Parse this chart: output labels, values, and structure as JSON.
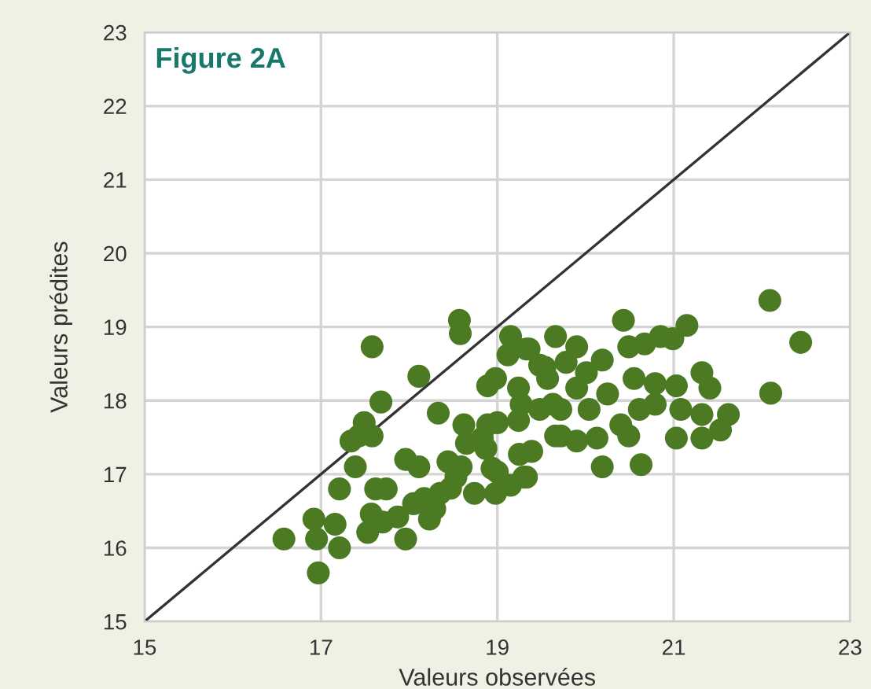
{
  "chart_data": {
    "type": "scatter",
    "title": "Figure 2A",
    "xlabel": "Valeurs observées",
    "ylabel": "Valeurs prédites",
    "xlim": [
      15,
      23
    ],
    "ylim": [
      15,
      23
    ],
    "xticks": [
      15,
      17,
      19,
      21,
      23
    ],
    "yticks": [
      15,
      16,
      17,
      18,
      19,
      20,
      21,
      22,
      23
    ],
    "grid": true,
    "marker": "circle",
    "series": [
      {
        "type": "line",
        "marker": "none",
        "color": "#333333",
        "x": [
          15,
          23
        ],
        "values": [
          15,
          23
        ]
      },
      {
        "color": "#4b7a22",
        "x": [
          16.58,
          16.92,
          16.95,
          16.97,
          17.16,
          17.21,
          17.21,
          17.39,
          17.34,
          17.49,
          17.58,
          17.43,
          17.68,
          17.58,
          18.11,
          18.57,
          18.58,
          18.33,
          17.62,
          17.74,
          17.57,
          17.53,
          17.7,
          17.96,
          17.96,
          18.11,
          17.87,
          18.05,
          18.17,
          18.23,
          18.35,
          18.47,
          18.44,
          18.59,
          18.62,
          18.65,
          18.83,
          18.87,
          18.74,
          18.94,
          18.98,
          19.15,
          19.33,
          19.25,
          19.39,
          19.0,
          19.24,
          19.27,
          18.89,
          18.98,
          19.24,
          19.12,
          19.15,
          19.33,
          19.66,
          19.54,
          19.63,
          19.72,
          18.29,
          18.53,
          22.09,
          22.44,
          22.1,
          20.43,
          21.15,
          19.9,
          20.19,
          20.49,
          20.67,
          20.85,
          20.99,
          19.36,
          19.48,
          19.78,
          20.01,
          20.25,
          19.57,
          19.9,
          20.55,
          20.79,
          21.03,
          21.32,
          21.41,
          19.48,
          19.72,
          20.04,
          20.4,
          20.61,
          20.79,
          21.08,
          21.32,
          21.62,
          21.53,
          21.32,
          19.66,
          19.9,
          20.13,
          20.49,
          21.03,
          20.19,
          20.63,
          18.89,
          19.0,
          19.3
        ],
        "values": [
          16.12,
          16.39,
          16.12,
          15.66,
          16.32,
          16.0,
          16.8,
          17.1,
          17.45,
          17.7,
          17.52,
          17.52,
          17.98,
          18.73,
          18.33,
          19.09,
          18.91,
          17.83,
          16.8,
          16.8,
          16.46,
          16.21,
          16.35,
          16.12,
          17.2,
          17.1,
          16.42,
          16.6,
          16.67,
          16.39,
          16.74,
          16.81,
          17.17,
          17.1,
          17.67,
          17.42,
          17.49,
          17.35,
          16.74,
          17.08,
          16.74,
          16.85,
          16.96,
          17.27,
          17.31,
          17.7,
          17.73,
          17.95,
          18.2,
          18.3,
          18.17,
          18.62,
          18.87,
          18.7,
          18.87,
          18.45,
          17.95,
          17.52,
          16.53,
          16.96,
          19.36,
          18.79,
          18.1,
          19.09,
          19.02,
          18.73,
          18.55,
          18.73,
          18.77,
          18.87,
          18.84,
          18.7,
          18.48,
          18.52,
          18.38,
          18.09,
          18.3,
          18.17,
          18.3,
          18.23,
          18.2,
          18.38,
          18.17,
          17.88,
          17.88,
          17.88,
          17.67,
          17.88,
          17.95,
          17.88,
          17.81,
          17.81,
          17.6,
          17.49,
          17.52,
          17.45,
          17.49,
          17.52,
          17.49,
          17.1,
          17.13,
          17.67,
          17.03,
          16.96
        ]
      }
    ]
  }
}
